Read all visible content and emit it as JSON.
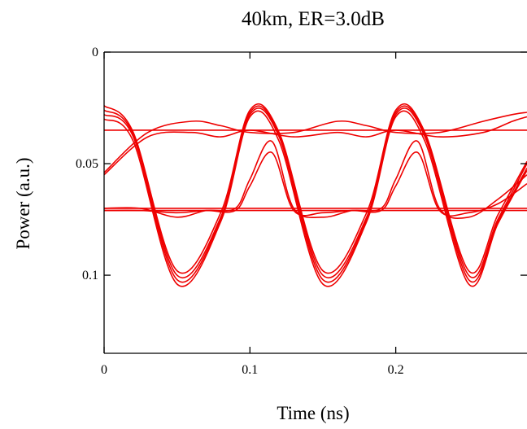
{
  "chart_data": {
    "type": "line",
    "title": "40km, ER=3.0dB",
    "xlabel": "Time (ns)",
    "ylabel": "Power (a.u.)",
    "xlim": [
      0,
      0.29
    ],
    "ylim": [
      0.135,
      0
    ],
    "y_inverted": true,
    "grid": false,
    "x_ticks": [
      {
        "value": 0,
        "label": "0"
      },
      {
        "value": 0.1,
        "label": "0.1"
      },
      {
        "value": 0.2,
        "label": "0.2"
      }
    ],
    "y_ticks": [
      {
        "value": 0,
        "label": "0"
      },
      {
        "value": 0.05,
        "label": "0.05"
      },
      {
        "value": 0.1,
        "label": "0.1"
      }
    ],
    "series_color": "#ee0000",
    "series": [
      {
        "x": [
          0,
          0.02,
          0.05,
          0.08,
          0.1,
          0.12,
          0.15,
          0.18,
          0.2,
          0.22,
          0.25,
          0.27,
          0.29
        ],
        "y": [
          0.024,
          0.036,
          0.098,
          0.072,
          0.026,
          0.036,
          0.098,
          0.072,
          0.026,
          0.036,
          0.098,
          0.073,
          0.049
        ]
      },
      {
        "x": [
          0,
          0.02,
          0.05,
          0.08,
          0.1,
          0.12,
          0.15,
          0.18,
          0.2,
          0.22,
          0.25,
          0.27,
          0.29
        ],
        "y": [
          0.026,
          0.037,
          0.1,
          0.074,
          0.027,
          0.037,
          0.1,
          0.074,
          0.027,
          0.037,
          0.1,
          0.075,
          0.05
        ]
      },
      {
        "x": [
          0,
          0.02,
          0.05,
          0.08,
          0.1,
          0.12,
          0.15,
          0.18,
          0.2,
          0.22,
          0.25,
          0.27,
          0.29
        ],
        "y": [
          0.028,
          0.038,
          0.102,
          0.075,
          0.028,
          0.038,
          0.102,
          0.075,
          0.028,
          0.038,
          0.102,
          0.076,
          0.052
        ]
      },
      {
        "x": [
          0,
          0.02,
          0.05,
          0.08,
          0.1,
          0.12,
          0.15,
          0.18,
          0.2,
          0.22,
          0.25,
          0.27,
          0.29
        ],
        "y": [
          0.03,
          0.04,
          0.104,
          0.076,
          0.029,
          0.04,
          0.104,
          0.076,
          0.029,
          0.04,
          0.104,
          0.077,
          0.053
        ]
      },
      {
        "x": [
          0,
          0.03,
          0.06,
          0.08,
          0.1,
          0.13,
          0.16,
          0.18,
          0.2,
          0.23,
          0.26,
          0.28,
          0.29
        ],
        "y": [
          0.054,
          0.036,
          0.031,
          0.033,
          0.036,
          0.036,
          0.031,
          0.033,
          0.036,
          0.036,
          0.031,
          0.028,
          0.027
        ]
      },
      {
        "x": [
          0,
          0.03,
          0.06,
          0.08,
          0.1,
          0.13,
          0.16,
          0.18,
          0.2,
          0.23,
          0.26,
          0.28,
          0.29
        ],
        "y": [
          0.055,
          0.038,
          0.036,
          0.038,
          0.035,
          0.038,
          0.036,
          0.038,
          0.035,
          0.038,
          0.036,
          0.031,
          0.029
        ]
      },
      {
        "x": [
          0,
          0.025,
          0.05,
          0.07,
          0.09,
          0.1,
          0.115,
          0.13,
          0.15,
          0.17,
          0.19,
          0.2,
          0.215,
          0.23,
          0.25,
          0.27,
          0.29
        ],
        "y": [
          0.07,
          0.07,
          0.074,
          0.071,
          0.07,
          0.057,
          0.04,
          0.07,
          0.074,
          0.071,
          0.07,
          0.057,
          0.04,
          0.07,
          0.074,
          0.066,
          0.055
        ]
      },
      {
        "x": [
          0,
          0.025,
          0.05,
          0.07,
          0.09,
          0.1,
          0.115,
          0.13,
          0.15,
          0.17,
          0.19,
          0.2,
          0.215,
          0.23,
          0.25,
          0.27,
          0.29
        ],
        "y": [
          0.071,
          0.071,
          0.072,
          0.071,
          0.071,
          0.06,
          0.045,
          0.071,
          0.072,
          0.071,
          0.071,
          0.06,
          0.045,
          0.071,
          0.072,
          0.068,
          0.059
        ]
      },
      {
        "x": [
          0,
          0.29
        ],
        "y": [
          0.035,
          0.035
        ]
      },
      {
        "x": [
          0,
          0.29
        ],
        "y": [
          0.07,
          0.07
        ]
      },
      {
        "x": [
          0,
          0.29
        ],
        "y": [
          0.071,
          0.071
        ]
      }
    ]
  }
}
